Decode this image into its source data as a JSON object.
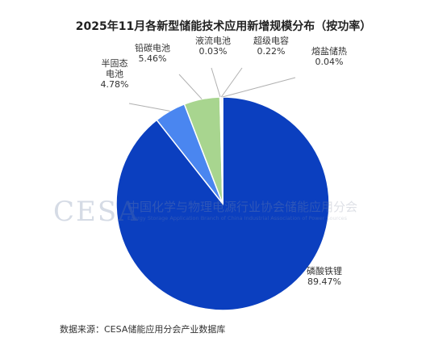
{
  "watermark": {
    "logo": "CESA",
    "name": "中国化学与物理电源行业协会储能应用分会",
    "english": "Energy Storage Application Branch of China Industrial Association of Power Sources"
  },
  "source_note": "数据来源：CESA储能应用分会产业数据库",
  "chart_data": {
    "type": "pie",
    "title": "2025年11月各新型储能技术应用新增规模分布（按功率）",
    "slices": [
      {
        "label": [
          "磷酸铁锂"
        ],
        "value": 89.47,
        "value_label": "89.47%",
        "color": "#0b3fbf"
      },
      {
        "label": [
          "半固态",
          "电池"
        ],
        "value": 4.78,
        "value_label": "4.78%",
        "color": "#4a86f0"
      },
      {
        "label": [
          "铅碳电池"
        ],
        "value": 5.46,
        "value_label": "5.46%",
        "color": "#a8d58f"
      },
      {
        "label": [
          "液流电池"
        ],
        "value": 0.03,
        "value_label": "0.03%",
        "color": "#f2c200"
      },
      {
        "label": [
          "超级电容"
        ],
        "value": 0.22,
        "value_label": "0.22%",
        "color": "#e8e2cf"
      },
      {
        "label": [
          "熔盐储热"
        ],
        "value": 0.04,
        "value_label": "0.04%",
        "color": "#d8d8d8"
      }
    ]
  }
}
